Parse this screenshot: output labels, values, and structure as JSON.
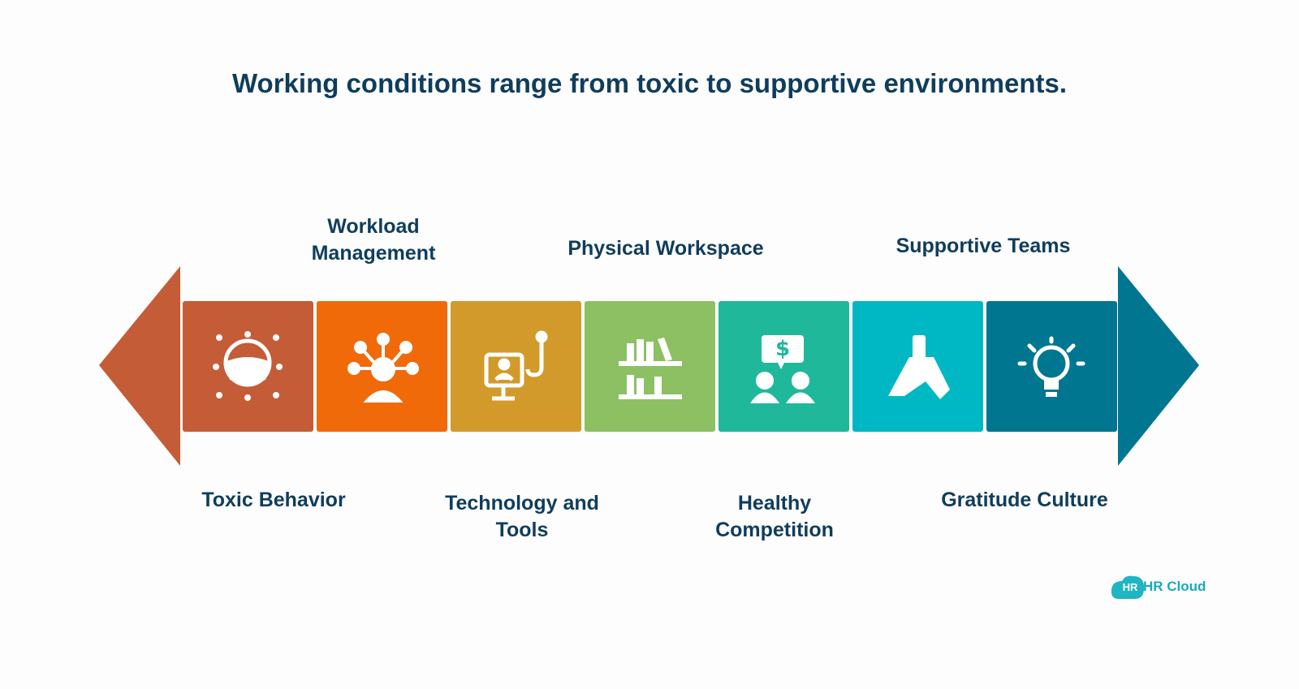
{
  "title": "Working conditions range from toxic to supportive environments.",
  "items": [
    {
      "label": "Toxic Behavior"
    },
    {
      "label": "Workload Management"
    },
    {
      "label": "Technology and Tools"
    },
    {
      "label": "Physical Workspace"
    },
    {
      "label": "Healthy Competition"
    },
    {
      "label": "Supportive Teams"
    },
    {
      "label": "Gratitude Culture"
    }
  ],
  "logo": {
    "badge": "HR",
    "name": "HR Cloud"
  }
}
